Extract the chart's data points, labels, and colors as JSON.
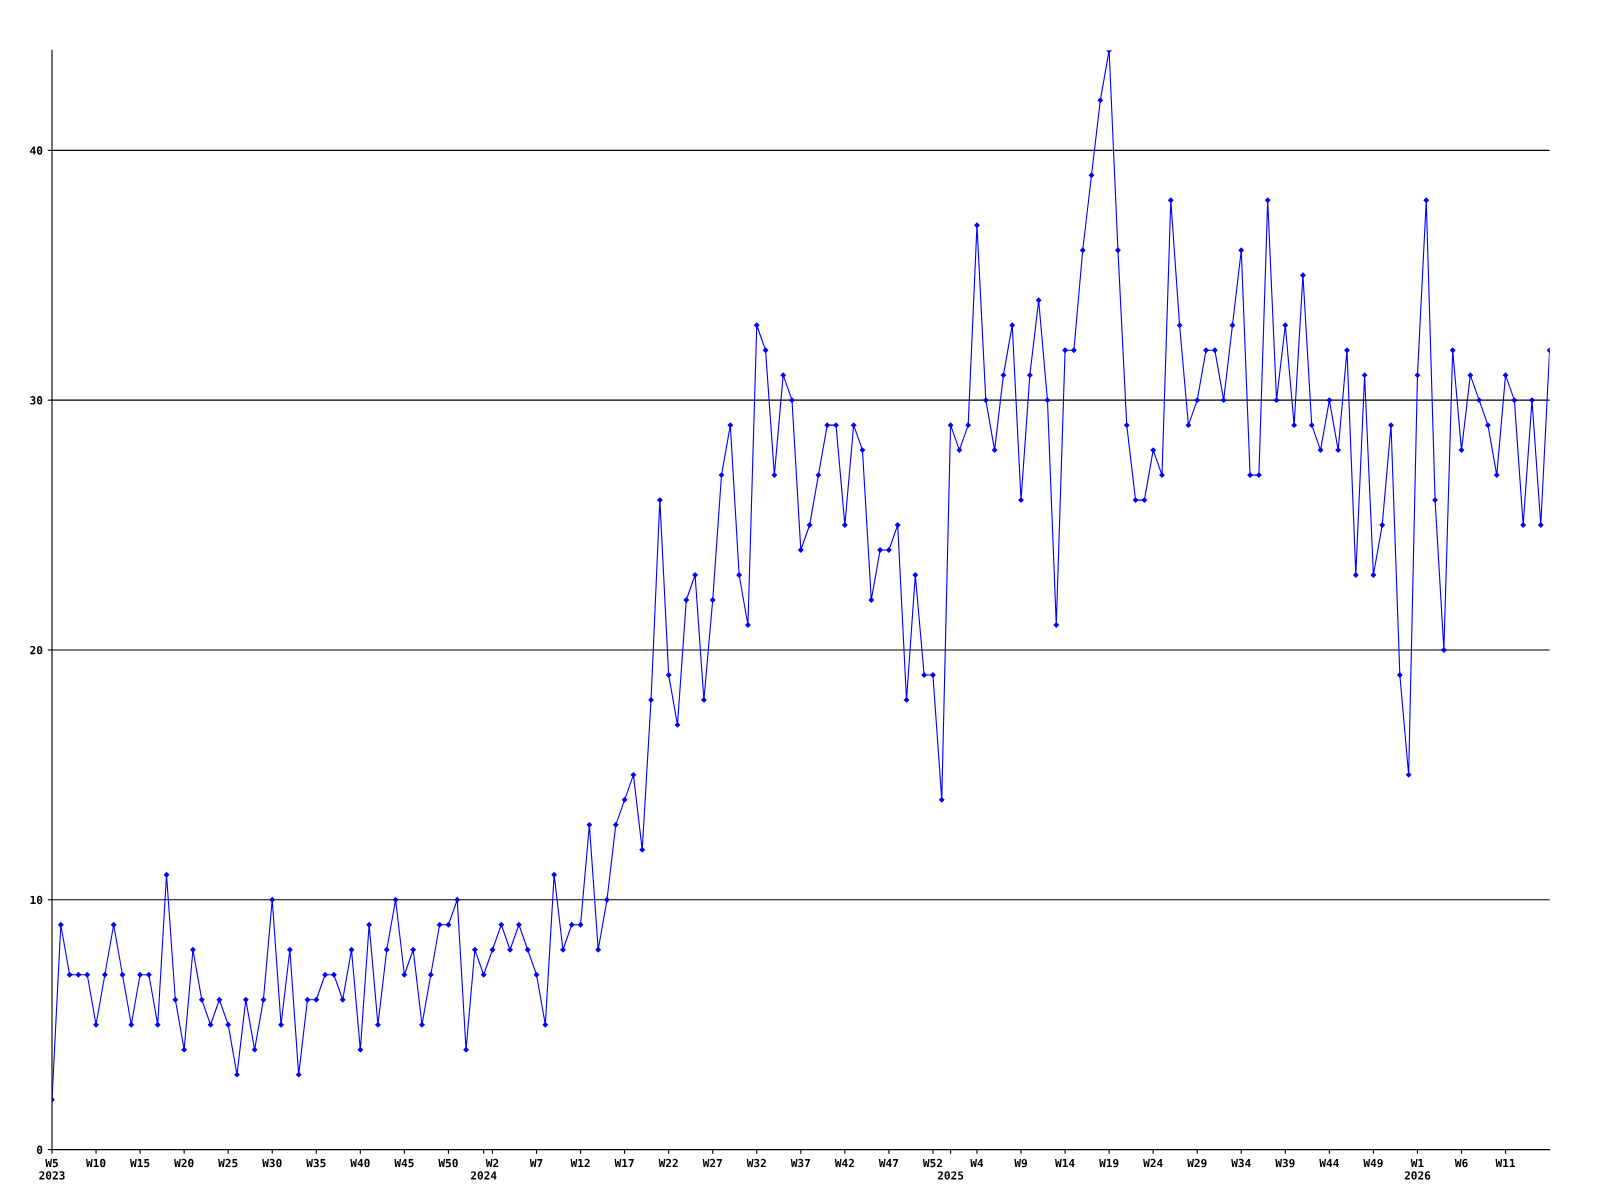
{
  "chart_data": {
    "type": "line",
    "categories": [
      "W5\n2023",
      null,
      null,
      null,
      null,
      "W10",
      null,
      null,
      null,
      null,
      "W15",
      null,
      null,
      null,
      null,
      "W20",
      null,
      null,
      null,
      null,
      "W25",
      null,
      null,
      null,
      null,
      "W30",
      null,
      null,
      null,
      null,
      "W35",
      null,
      null,
      null,
      null,
      "W40",
      null,
      null,
      null,
      null,
      "W45",
      null,
      null,
      null,
      null,
      "W50",
      null,
      null,
      null,
      "\n2024",
      "W2",
      null,
      null,
      null,
      null,
      "W7",
      null,
      null,
      null,
      null,
      "W12",
      null,
      null,
      null,
      null,
      "W17",
      null,
      null,
      null,
      null,
      "W22",
      null,
      null,
      null,
      null,
      "W27",
      null,
      null,
      null,
      null,
      "W32",
      null,
      null,
      null,
      null,
      "W37",
      null,
      null,
      null,
      null,
      "W42",
      null,
      null,
      null,
      null,
      "W47",
      null,
      null,
      null,
      null,
      "W52",
      null,
      "\n2025",
      null,
      null,
      "W4",
      null,
      null,
      null,
      null,
      "W9",
      null,
      null,
      null,
      null,
      "W14",
      null,
      null,
      null,
      null,
      "W19",
      null,
      null,
      null,
      null,
      "W24",
      null,
      null,
      null,
      null,
      "W29",
      null,
      null,
      null,
      null,
      "W34",
      null,
      null,
      null,
      null,
      "W39",
      null,
      null,
      null,
      null,
      "W44",
      null,
      null,
      null,
      null,
      "W49",
      null,
      null,
      null,
      null,
      "W1\n2026",
      null,
      null,
      null,
      null,
      "W6",
      null,
      null,
      null,
      null,
      "W11",
      null,
      null,
      null,
      null,
      null
    ],
    "series": [
      {
        "color": "#0000ff",
        "values": [
          2,
          9,
          7,
          7,
          7,
          5,
          7,
          9,
          7,
          5,
          7,
          7,
          5,
          11,
          6,
          4,
          8,
          6,
          5,
          6,
          5,
          3,
          6,
          4,
          6,
          10,
          5,
          8,
          3,
          6,
          6,
          7,
          7,
          6,
          8,
          4,
          9,
          5,
          8,
          10,
          7,
          8,
          5,
          7,
          9,
          9,
          10,
          4,
          8,
          7,
          8,
          9,
          8,
          9,
          8,
          7,
          5,
          11,
          8,
          9,
          9,
          13,
          8,
          10,
          13,
          14,
          15,
          12,
          18,
          26,
          19,
          17,
          22,
          23,
          18,
          22,
          27,
          29,
          23,
          21,
          33,
          32,
          27,
          31,
          30,
          24,
          25,
          27,
          29,
          29,
          25,
          29,
          28,
          22,
          24,
          24,
          25,
          18,
          23,
          19,
          19,
          14,
          29,
          28,
          29,
          37,
          30,
          28,
          31,
          33,
          26,
          31,
          34,
          30,
          21,
          32,
          32,
          36,
          39,
          42,
          44,
          36,
          29,
          26,
          26,
          28,
          27,
          38,
          33,
          29,
          30,
          32,
          32,
          30,
          33,
          36,
          27,
          27,
          38,
          30,
          33,
          29,
          35,
          29,
          28,
          30,
          28,
          32,
          23,
          31,
          23,
          25,
          29,
          19,
          15,
          31,
          38,
          26,
          20,
          32,
          28,
          31,
          30,
          29,
          27,
          31,
          30,
          25,
          30,
          25,
          32
        ]
      }
    ],
    "ylim": [
      0,
      44
    ],
    "yticks": [
      0,
      10,
      20,
      30,
      40
    ],
    "grid": "y",
    "marker": "diamond",
    "line_style": "solid"
  }
}
